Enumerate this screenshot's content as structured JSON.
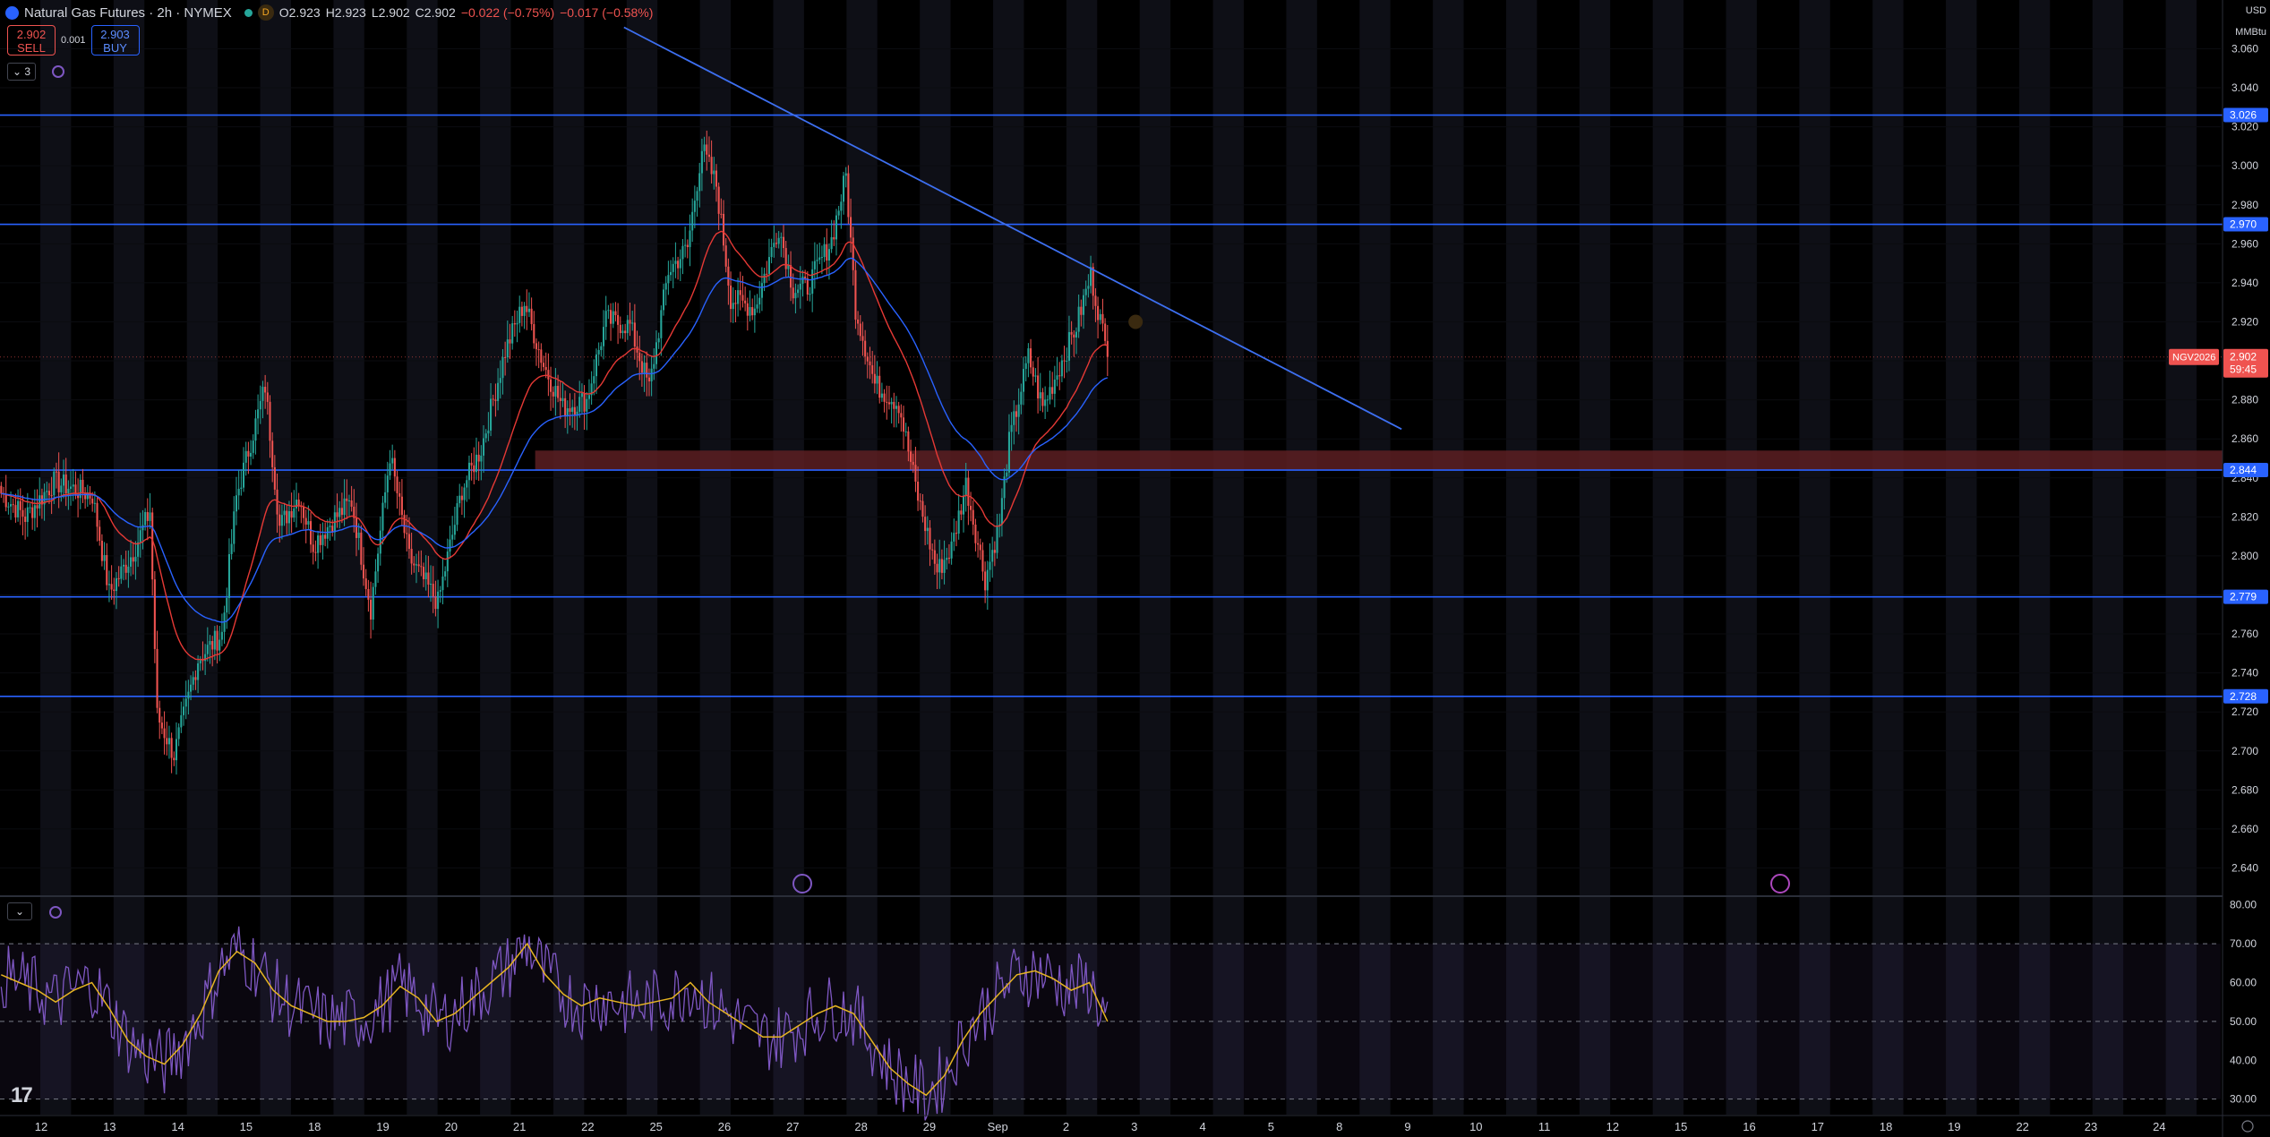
{
  "header": {
    "title": "Natural Gas Futures · 2h · NYMEX",
    "session_badge": "D",
    "ohlc": {
      "open": "O2.923",
      "high": "H2.923",
      "low": "L2.902",
      "close": "C2.902"
    },
    "change": "−0.022 (−0.75%)",
    "change2": "−0.017 (−0.58%)"
  },
  "trade": {
    "sell_price": "2.902",
    "sell_label": "SELL",
    "spread": "0.001",
    "buy_price": "2.903",
    "buy_label": "BUY"
  },
  "indicator_count": "3",
  "currency": "USD",
  "unit": "MMBtu",
  "price_tag": {
    "symbol": "NGV2026",
    "price": "2.902",
    "countdown": "59:45"
  },
  "colors": {
    "up": "#26a69a",
    "down": "#ef5350",
    "ema_fast": "#e53935",
    "ema_slow": "#2962ff",
    "hline": "#2962ff",
    "trend": "#3d6ff0",
    "rsi": "#7e57c2",
    "rsi_ma": "#e6b422",
    "zone": "#5c1e22"
  },
  "chart_data": [
    {
      "type": "candlestick",
      "title": "Natural Gas Futures · 2h · NYMEX",
      "x_ticks": [
        "12",
        "13",
        "14",
        "15",
        "18",
        "19",
        "20",
        "21",
        "22",
        "25",
        "26",
        "27",
        "28",
        "29",
        "Sep",
        "2",
        "3",
        "4",
        "5",
        "8",
        "9",
        "10",
        "11",
        "12",
        "15",
        "16",
        "17",
        "18",
        "19",
        "22",
        "23",
        "24"
      ],
      "y_ticks": [
        "3.060",
        "3.040",
        "3.020",
        "3.000",
        "2.980",
        "2.960",
        "2.940",
        "2.920",
        "2.900",
        "2.880",
        "2.860",
        "2.840",
        "2.820",
        "2.800",
        "2.780",
        "2.760",
        "2.740",
        "2.720",
        "2.700",
        "2.680",
        "2.660",
        "2.640"
      ],
      "ylim": [
        2.626,
        3.085
      ],
      "horizontal_levels": [
        "3.026",
        "2.970",
        "2.844",
        "2.779",
        "2.728"
      ],
      "resistance_trendline": {
        "from": {
          "bar": 260,
          "price": 3.071
        },
        "to": {
          "bar": 584,
          "price": 2.865
        }
      },
      "supply_zone": {
        "from_bar": 223,
        "price_top": 2.854,
        "price_bottom": 2.844
      },
      "anchors": [
        [
          0,
          2.832
        ],
        [
          10,
          2.82
        ],
        [
          22,
          2.838
        ],
        [
          38,
          2.831
        ],
        [
          45,
          2.781
        ],
        [
          55,
          2.802
        ],
        [
          62,
          2.823
        ],
        [
          65,
          2.718
        ],
        [
          72,
          2.698
        ],
        [
          82,
          2.747
        ],
        [
          92,
          2.76
        ],
        [
          98,
          2.83
        ],
        [
          110,
          2.887
        ],
        [
          116,
          2.815
        ],
        [
          124,
          2.831
        ],
        [
          130,
          2.806
        ],
        [
          138,
          2.818
        ],
        [
          146,
          2.828
        ],
        [
          154,
          2.773
        ],
        [
          162,
          2.852
        ],
        [
          170,
          2.799
        ],
        [
          182,
          2.776
        ],
        [
          192,
          2.834
        ],
        [
          200,
          2.855
        ],
        [
          210,
          2.905
        ],
        [
          218,
          2.93
        ],
        [
          226,
          2.898
        ],
        [
          234,
          2.876
        ],
        [
          244,
          2.88
        ],
        [
          252,
          2.921
        ],
        [
          262,
          2.918
        ],
        [
          270,
          2.886
        ],
        [
          278,
          2.946
        ],
        [
          286,
          2.958
        ],
        [
          292,
          3.009
        ],
        [
          298,
          2.99
        ],
        [
          304,
          2.932
        ],
        [
          314,
          2.927
        ],
        [
          324,
          2.969
        ],
        [
          330,
          2.937
        ],
        [
          336,
          2.938
        ],
        [
          346,
          2.962
        ],
        [
          352,
          2.995
        ],
        [
          356,
          2.927
        ],
        [
          364,
          2.888
        ],
        [
          374,
          2.878
        ],
        [
          382,
          2.83
        ],
        [
          390,
          2.792
        ],
        [
          396,
          2.804
        ],
        [
          402,
          2.837
        ],
        [
          410,
          2.788
        ],
        [
          416,
          2.817
        ],
        [
          420,
          2.858
        ],
        [
          428,
          2.902
        ],
        [
          434,
          2.876
        ],
        [
          440,
          2.894
        ],
        [
          448,
          2.918
        ],
        [
          454,
          2.944
        ],
        [
          458,
          2.921
        ],
        [
          461,
          2.902
        ]
      ],
      "last_price": 2.902
    },
    {
      "type": "line",
      "title": "RSI",
      "y_ticks": [
        "80.00",
        "70.00",
        "60.00",
        "50.00",
        "40.00",
        "30.00"
      ],
      "ylim": [
        26,
        82
      ],
      "band": [
        30,
        70
      ],
      "midline": 50,
      "series": [
        {
          "values": [
            62,
            60,
            58,
            55,
            58,
            60,
            53,
            45,
            41,
            39,
            44,
            52,
            63,
            68,
            65,
            58,
            54,
            52,
            50,
            50,
            51,
            54,
            59,
            56,
            50,
            52,
            56,
            60,
            64,
            70,
            62,
            57,
            54,
            56,
            55,
            54,
            55,
            56,
            60,
            55,
            52,
            49,
            46,
            46,
            49,
            52,
            54,
            52,
            45,
            38,
            34,
            31,
            36,
            45,
            52,
            57,
            62,
            63,
            61,
            58,
            60,
            50
          ]
        }
      ]
    }
  ]
}
